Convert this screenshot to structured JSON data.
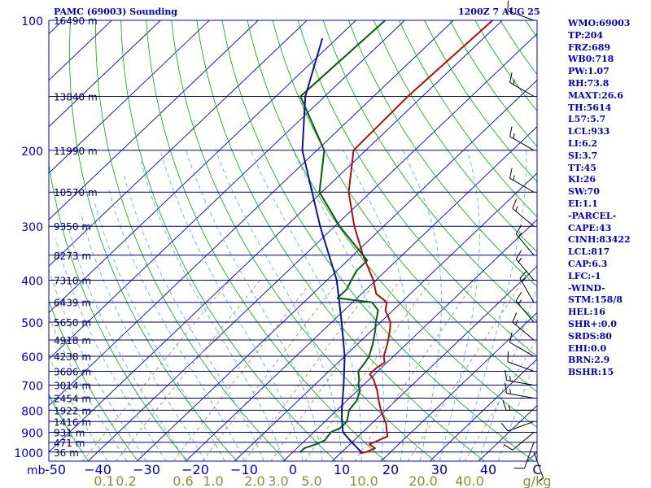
{
  "header": {
    "station": "PAMC (69003) Sounding",
    "time": "1200Z  7 AUG 25"
  },
  "indices": [
    "WMO:69003",
    "TP:204",
    "FRZ:689",
    "WB0:718",
    "PW:1.07",
    "RH:73.8",
    "MAXT:26.6",
    "TH:5614",
    "L57:5.7",
    "LCL:933",
    "LI:6.2",
    "SI:3.7",
    "TT:45",
    "KI:26",
    "SW:70",
    "EI:1.1",
    "-PARCEL-",
    "CAPE:43",
    "CINH:83422",
    "LCL:817",
    "CAP:6.3",
    "LFC:-1",
    "-WIND-",
    "STM:158/8",
    "HEL:16",
    "SHR+:0.0",
    "SRDS:80",
    "EHI:0.0",
    "BRN:2.9",
    "BSHR:15"
  ],
  "colors": {
    "background": "#ffffff",
    "frame": "#0000cc",
    "isobar": "#000080",
    "isotherm": "#0000cc",
    "dry_adiabat": "#00aa00",
    "moist_adiabat": "#5fb4d8",
    "mixing_ratio": "#998855",
    "temperature": "#aa1111",
    "dewpoint": "#0a5a0a",
    "parcel": "#0a14a0",
    "text": "#0000cc",
    "mixing_label": "#998833"
  },
  "chart_data": {
    "type": "line",
    "title": "PAMC (69003) Sounding",
    "subtitle": "1200Z  7 AUG 25",
    "diagram": "skew-t log-p",
    "x_axis_unit": "C",
    "y_axis_unit": "mb",
    "x_ticks": [
      -50,
      -40,
      -30,
      -20,
      -10,
      0,
      10,
      20,
      30,
      40
    ],
    "xlim": [
      -50,
      50
    ],
    "y_ticks": [
      100,
      200,
      300,
      400,
      500,
      600,
      700,
      800,
      900,
      1000
    ],
    "ylim": [
      1050,
      100
    ],
    "y_scale": "log",
    "isobar_height_labels": [
      {
        "p": 100,
        "label": "16490 m"
      },
      {
        "p": 150,
        "label": "13840 m"
      },
      {
        "p": 200,
        "label": "11990 m"
      },
      {
        "p": 250,
        "label": "10570 m"
      },
      {
        "p": 300,
        "label": "9350 m"
      },
      {
        "p": 350,
        "label": "8273 m"
      },
      {
        "p": 400,
        "label": "7310 m"
      },
      {
        "p": 450,
        "label": "6439 m"
      },
      {
        "p": 500,
        "label": "5650 m"
      },
      {
        "p": 550,
        "label": "4918 m"
      },
      {
        "p": 600,
        "label": "4238 m"
      },
      {
        "p": 650,
        "label": "3606 m"
      },
      {
        "p": 700,
        "label": "3014 m"
      },
      {
        "p": 750,
        "label": "2454 m"
      },
      {
        "p": 800,
        "label": "1922 m"
      },
      {
        "p": 850,
        "label": "1416 m"
      },
      {
        "p": 900,
        "label": "931 m"
      },
      {
        "p": 950,
        "label": "471 m"
      },
      {
        "p": 1000,
        "label": "36 m"
      }
    ],
    "mixing_ratio_labels": [
      "0.1",
      "0.2",
      "0.6",
      "1.0",
      "2.0",
      "3.0",
      "5.0",
      "10.0",
      "20.0",
      "40.0",
      "g/kg"
    ],
    "series": [
      {
        "key": "temperature",
        "points": [
          [
            1007,
            14
          ],
          [
            1000,
            15
          ],
          [
            980,
            16
          ],
          [
            960,
            14
          ],
          [
            940,
            15
          ],
          [
            920,
            16
          ],
          [
            900,
            15
          ],
          [
            880,
            14
          ],
          [
            860,
            13
          ],
          [
            830,
            11
          ],
          [
            800,
            9
          ],
          [
            760,
            6.5
          ],
          [
            720,
            4
          ],
          [
            700,
            2.5
          ],
          [
            680,
            1
          ],
          [
            660,
            -1
          ],
          [
            640,
            -1
          ],
          [
            620,
            -0.5
          ],
          [
            600,
            -2
          ],
          [
            560,
            -4
          ],
          [
            520,
            -6.5
          ],
          [
            500,
            -8
          ],
          [
            470,
            -11.5
          ],
          [
            450,
            -13
          ],
          [
            430,
            -17
          ],
          [
            400,
            -20.5
          ],
          [
            350,
            -28
          ],
          [
            300,
            -36
          ],
          [
            250,
            -44.5
          ],
          [
            200,
            -52.5
          ],
          [
            150,
            -53
          ],
          [
            100,
            -52
          ]
        ]
      },
      {
        "key": "dewpoint",
        "points": [
          [
            1000,
            1.5
          ],
          [
            980,
            1.5
          ],
          [
            960,
            3
          ],
          [
            940,
            4
          ],
          [
            900,
            3.5
          ],
          [
            880,
            4.5
          ],
          [
            850,
            4.5
          ],
          [
            800,
            2.5
          ],
          [
            760,
            2
          ],
          [
            720,
            0.5
          ],
          [
            700,
            -1
          ],
          [
            680,
            -2
          ],
          [
            650,
            -4
          ],
          [
            620,
            -4.5
          ],
          [
            600,
            -5
          ],
          [
            560,
            -7
          ],
          [
            520,
            -9.5
          ],
          [
            500,
            -11
          ],
          [
            470,
            -13
          ],
          [
            450,
            -16
          ],
          [
            440,
            -24
          ],
          [
            420,
            -24
          ],
          [
            400,
            -25
          ],
          [
            380,
            -26
          ],
          [
            360,
            -26
          ],
          [
            350,
            -28
          ],
          [
            300,
            -39
          ],
          [
            250,
            -50.5
          ],
          [
            200,
            -58.5
          ],
          [
            150,
            -75
          ],
          [
            100,
            -74
          ]
        ]
      },
      {
        "key": "parcel",
        "points": [
          [
            1000,
            14
          ],
          [
            950,
            10
          ],
          [
            900,
            6
          ],
          [
            850,
            3.5
          ],
          [
            800,
            1
          ],
          [
            700,
            -4
          ],
          [
            600,
            -10
          ],
          [
            500,
            -18
          ],
          [
            400,
            -28
          ],
          [
            300,
            -43
          ],
          [
            200,
            -63
          ],
          [
            150,
            -74
          ],
          [
            110,
            -83
          ]
        ]
      }
    ],
    "wind_barbs": [
      {
        "p": 1000,
        "dir": 160,
        "speed": 5
      },
      {
        "p": 950,
        "dir": 200,
        "speed": 10
      },
      {
        "p": 900,
        "dir": 230,
        "speed": 10
      },
      {
        "p": 850,
        "dir": 250,
        "speed": 10
      },
      {
        "p": 800,
        "dir": 270,
        "speed": 15
      },
      {
        "p": 750,
        "dir": 280,
        "speed": 15
      },
      {
        "p": 700,
        "dir": 280,
        "speed": 15
      },
      {
        "p": 650,
        "dir": 290,
        "speed": 10
      },
      {
        "p": 600,
        "dir": 300,
        "speed": 10
      },
      {
        "p": 550,
        "dir": 310,
        "speed": 15
      },
      {
        "p": 500,
        "dir": 320,
        "speed": 15
      },
      {
        "p": 450,
        "dir": 330,
        "speed": 15
      },
      {
        "p": 400,
        "dir": 320,
        "speed": 15
      },
      {
        "p": 350,
        "dir": 320,
        "speed": 15
      },
      {
        "p": 300,
        "dir": 310,
        "speed": 15
      },
      {
        "p": 250,
        "dir": 300,
        "speed": 15
      },
      {
        "p": 200,
        "dir": 300,
        "speed": 15
      },
      {
        "p": 150,
        "dir": 300,
        "speed": 15
      },
      {
        "p": 100,
        "dir": 290,
        "speed": 15
      }
    ]
  }
}
